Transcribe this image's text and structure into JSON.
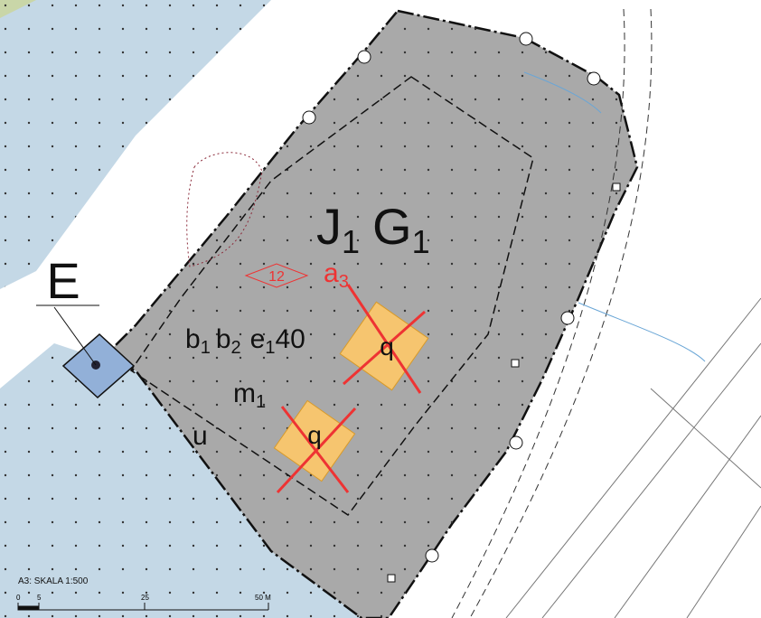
{
  "map": {
    "zone_e": "E",
    "designation": [
      {
        "text": "J",
        "sub": "1"
      },
      {
        "text": "G",
        "sub": "1"
      }
    ],
    "height_code": "12",
    "red_code": {
      "text": "a",
      "sub": "3"
    },
    "codes": [
      {
        "text": "b",
        "sub": "1"
      },
      {
        "text": "b",
        "sub": "2"
      },
      {
        "text": "e",
        "sub": "1",
        "suffix": "40"
      }
    ],
    "m_code": {
      "text": "m",
      "sub": "1"
    },
    "u_label": "u",
    "buildings": [
      "q",
      "q"
    ],
    "scale": {
      "title": "A3:  SKALA 1:500",
      "ticks": [
        "0",
        "5",
        "25",
        "50 M"
      ]
    }
  }
}
